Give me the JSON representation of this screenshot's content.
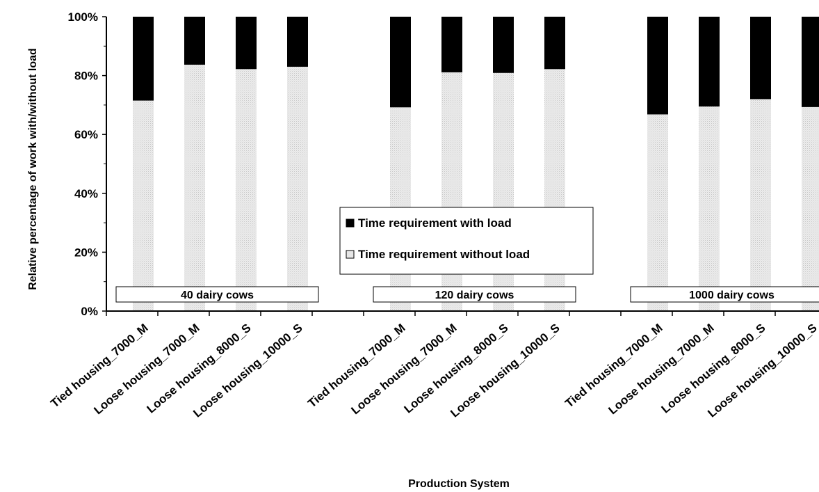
{
  "chart_data": {
    "type": "bar",
    "stacked": true,
    "xlabel": "Production System",
    "ylabel": "Relative percentage of work with/without load",
    "ylim": [
      0,
      100
    ],
    "yticks": [
      "0%",
      "20%",
      "40%",
      "60%",
      "80%",
      "100%"
    ],
    "ytick_values": [
      0,
      20,
      40,
      60,
      80,
      100
    ],
    "categories": [
      "Tied housing_7000_M",
      "Loose housing_7000_M",
      "Loose housing_8000_S",
      "Loose housing_10000_S",
      "Tied housing_7000_M",
      "Loose housing_7000_M",
      "Loose housing_8000_S",
      "Loose housing_10000_S",
      "Tied housing_7000_M",
      "Loose housing_7000_M",
      "Loose housing_8000_S",
      "Loose housing_10000_S"
    ],
    "groups": [
      {
        "label": "40 dairy cows"
      },
      {
        "label": "120 dairy cows"
      },
      {
        "label": "1000 dairy cows"
      }
    ],
    "series": [
      {
        "name": "Time requirement without load",
        "color": "#e6e6e6",
        "values": [
          71.5,
          83.7,
          82.2,
          83.0,
          69.2,
          81.1,
          80.9,
          82.2,
          66.8,
          69.5,
          72.0,
          69.3
        ]
      },
      {
        "name": "Time requirement with load",
        "color": "#000000",
        "values": [
          28.5,
          16.3,
          17.8,
          17.0,
          30.8,
          18.9,
          19.1,
          17.8,
          33.2,
          30.5,
          28.0,
          30.7
        ]
      }
    ],
    "legend": {
      "position": "center",
      "entries": [
        "Time requirement with load",
        "Time requirement without load"
      ]
    },
    "grid": false
  }
}
